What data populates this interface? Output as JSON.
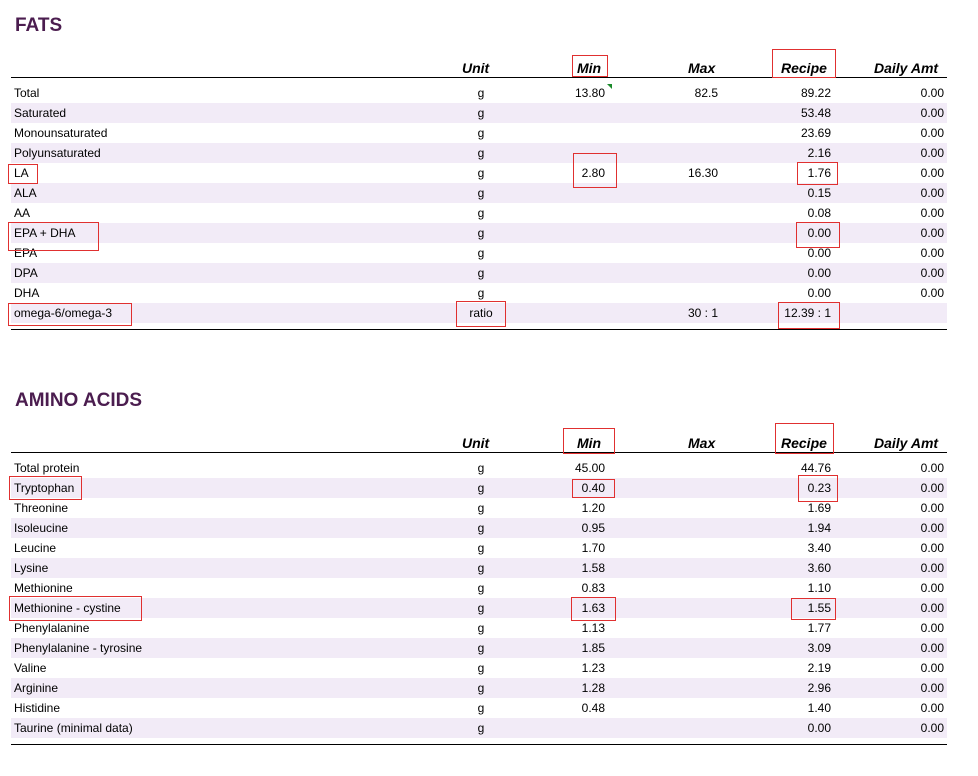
{
  "headers": {
    "unit": "Unit",
    "min": "Min",
    "max": "Max",
    "recipe": "Recipe",
    "daily": "Daily Amt"
  },
  "fats": {
    "title": "FATS",
    "rows": [
      {
        "name": "Total",
        "unit": "g",
        "min": "13.80",
        "max": "82.5",
        "recipe": "89.22",
        "daily": "0.00"
      },
      {
        "name": "Saturated",
        "unit": "g",
        "min": "",
        "max": "",
        "recipe": "53.48",
        "daily": "0.00"
      },
      {
        "name": "Monounsaturated",
        "unit": "g",
        "min": "",
        "max": "",
        "recipe": "23.69",
        "daily": "0.00"
      },
      {
        "name": "Polyunsaturated",
        "unit": "g",
        "min": "",
        "max": "",
        "recipe": "2.16",
        "daily": "0.00"
      },
      {
        "name": "LA",
        "unit": "g",
        "min": "2.80",
        "max": "16.30",
        "recipe": "1.76",
        "daily": "0.00"
      },
      {
        "name": "ALA",
        "unit": "g",
        "min": "",
        "max": "",
        "recipe": "0.15",
        "daily": "0.00"
      },
      {
        "name": "AA",
        "unit": "g",
        "min": "",
        "max": "",
        "recipe": "0.08",
        "daily": "0.00"
      },
      {
        "name": "EPA + DHA",
        "unit": "g",
        "min": "",
        "max": "",
        "recipe": "0.00",
        "daily": "0.00"
      },
      {
        "name": "EPA",
        "unit": "g",
        "min": "",
        "max": "",
        "recipe": "0.00",
        "daily": "0.00"
      },
      {
        "name": "DPA",
        "unit": "g",
        "min": "",
        "max": "",
        "recipe": "0.00",
        "daily": "0.00"
      },
      {
        "name": "DHA",
        "unit": "g",
        "min": "",
        "max": "",
        "recipe": "0.00",
        "daily": "0.00"
      },
      {
        "name": "omega-6/omega-3",
        "unit": "ratio",
        "min": "",
        "max": "30 : 1",
        "recipe": "12.39 : 1",
        "daily": ""
      }
    ]
  },
  "amino": {
    "title": "AMINO ACIDS",
    "rows": [
      {
        "name": "Total protein",
        "unit": "g",
        "min": "45.00",
        "max": "",
        "recipe": "44.76",
        "daily": "0.00"
      },
      {
        "name": "Tryptophan",
        "unit": "g",
        "min": "0.40",
        "max": "",
        "recipe": "0.23",
        "daily": "0.00"
      },
      {
        "name": "Threonine",
        "unit": "g",
        "min": "1.20",
        "max": "",
        "recipe": "1.69",
        "daily": "0.00"
      },
      {
        "name": "Isoleucine",
        "unit": "g",
        "min": "0.95",
        "max": "",
        "recipe": "1.94",
        "daily": "0.00"
      },
      {
        "name": "Leucine",
        "unit": "g",
        "min": "1.70",
        "max": "",
        "recipe": "3.40",
        "daily": "0.00"
      },
      {
        "name": "Lysine",
        "unit": "g",
        "min": "1.58",
        "max": "",
        "recipe": "3.60",
        "daily": "0.00"
      },
      {
        "name": "Methionine",
        "unit": "g",
        "min": "0.83",
        "max": "",
        "recipe": "1.10",
        "daily": "0.00"
      },
      {
        "name": "Methionine - cystine",
        "unit": "g",
        "min": "1.63",
        "max": "",
        "recipe": "1.55",
        "daily": "0.00"
      },
      {
        "name": "Phenylalanine",
        "unit": "g",
        "min": "1.13",
        "max": "",
        "recipe": "1.77",
        "daily": "0.00"
      },
      {
        "name": "Phenylalanine - tyrosine",
        "unit": "g",
        "min": "1.85",
        "max": "",
        "recipe": "3.09",
        "daily": "0.00"
      },
      {
        "name": "Valine",
        "unit": "g",
        "min": "1.23",
        "max": "",
        "recipe": "2.19",
        "daily": "0.00"
      },
      {
        "name": "Arginine",
        "unit": "g",
        "min": "1.28",
        "max": "",
        "recipe": "2.96",
        "daily": "0.00"
      },
      {
        "name": "Histidine",
        "unit": "g",
        "min": "0.48",
        "max": "",
        "recipe": "1.40",
        "daily": "0.00"
      },
      {
        "name": "Taurine (minimal data)",
        "unit": "g",
        "min": "",
        "max": "",
        "recipe": "0.00",
        "daily": "0.00"
      }
    ]
  },
  "colors": {
    "title": "#4b1d4f",
    "row_alt": "#f2ebf7",
    "highlight": "#e03030",
    "comment_marker": "#1a8a2a"
  }
}
